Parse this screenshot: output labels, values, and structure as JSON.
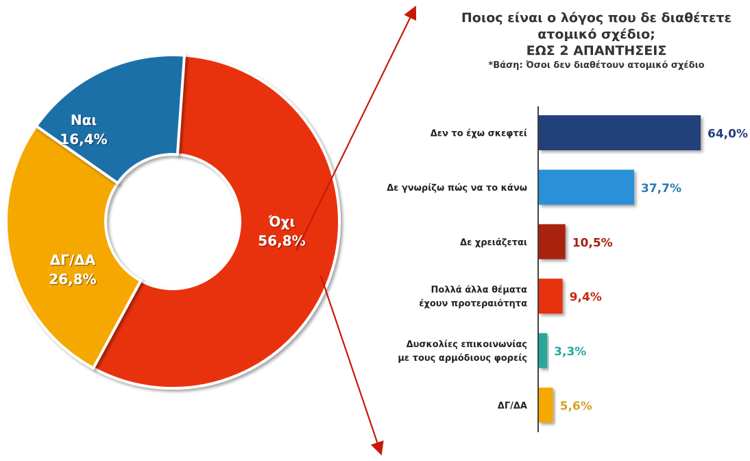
{
  "title": {
    "line1": "Ποιος είναι ο λόγος που δε διαθέτετε",
    "line2": "ατομικό σχέδιο;",
    "line3": "ΕΩΣ 2 ΑΠΑΝΤΗΣΕΙΣ",
    "base": "*Βάση: Όσοι δεν διαθέτουν ατομικό σχέδιο"
  },
  "chart_data": [
    {
      "type": "pie",
      "variant": "donut",
      "slices": [
        {
          "label": "Όχι",
          "value": 56.8,
          "value_label": "56,8%",
          "color": "#E8310F"
        },
        {
          "label": "ΔΓ/ΔΑ",
          "value": 26.8,
          "value_label": "26,8%",
          "color": "#F5A800"
        },
        {
          "label": "Ναι",
          "value": 16.4,
          "value_label": "16,4%",
          "color": "#1F6FA8"
        }
      ]
    },
    {
      "type": "bar",
      "orientation": "horizontal",
      "xlim": [
        0,
        64
      ],
      "categories": [
        [
          "Δεν το έχω σκεφτεί"
        ],
        [
          "Δε γνωρίζω πώς να το κάνω"
        ],
        [
          "Δε χρειάζεται"
        ],
        [
          "Πολλά άλλα θέματα",
          "έχουν προτεραιότητα"
        ],
        [
          "Δυσκολίες επικοινωνίας",
          "με τους αρμόδιους φορείς"
        ],
        [
          "ΔΓ/ΔΑ"
        ]
      ],
      "values": [
        64.0,
        37.7,
        10.5,
        9.4,
        3.3,
        5.6
      ],
      "value_labels": [
        "64,0%",
        "37,7%",
        "10,5%",
        "9,4%",
        "3,3%",
        "5,6%"
      ],
      "colors": [
        "#243F7A",
        "#2A90D8",
        "#A8200C",
        "#E8310F",
        "#27A89A",
        "#F5A800"
      ],
      "label_colors": [
        "#243F7A",
        "#2A7CB8",
        "#A8200C",
        "#C8280F",
        "#27A89A",
        "#D7A12A"
      ]
    }
  ]
}
